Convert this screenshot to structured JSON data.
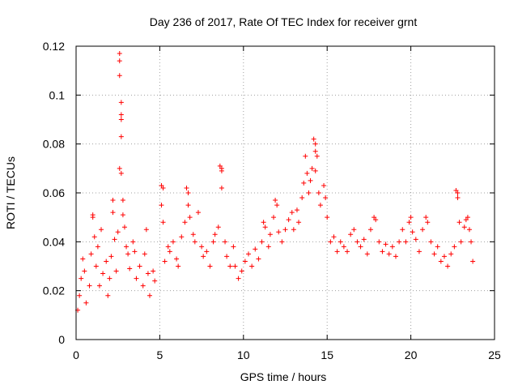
{
  "chart_data": {
    "type": "scatter",
    "title": "Day 236 of 2017, Rate Of TEC Index for receiver grnt",
    "xlabel": "GPS time / hours",
    "ylabel": "ROTI / TECUs",
    "xlim": [
      0,
      25
    ],
    "ylim": [
      0,
      0.12
    ],
    "xticks": [
      0,
      5,
      10,
      15,
      20,
      25
    ],
    "yticks": [
      0,
      0.02,
      0.04,
      0.06,
      0.08,
      0.1,
      0.12
    ],
    "xtick_labels": [
      "0",
      "5",
      "10",
      "15",
      "20",
      "25"
    ],
    "ytick_labels": [
      "0",
      "0.02",
      "0.04",
      "0.06",
      "0.08",
      "0.1",
      "0.12"
    ],
    "grid": true,
    "marker": "+",
    "color": "#ff0000",
    "series": [
      {
        "name": "ROTI",
        "points": [
          [
            0.1,
            0.012
          ],
          [
            0.2,
            0.018
          ],
          [
            0.3,
            0.025
          ],
          [
            0.4,
            0.033
          ],
          [
            0.5,
            0.028
          ],
          [
            0.6,
            0.015
          ],
          [
            0.8,
            0.022
          ],
          [
            0.9,
            0.035
          ],
          [
            1.0,
            0.051
          ],
          [
            1.0,
            0.05
          ],
          [
            1.1,
            0.042
          ],
          [
            1.2,
            0.03
          ],
          [
            1.3,
            0.038
          ],
          [
            1.4,
            0.022
          ],
          [
            1.5,
            0.045
          ],
          [
            1.6,
            0.027
          ],
          [
            1.8,
            0.032
          ],
          [
            1.9,
            0.018
          ],
          [
            2.0,
            0.025
          ],
          [
            2.1,
            0.034
          ],
          [
            2.2,
            0.052
          ],
          [
            2.2,
            0.057
          ],
          [
            2.3,
            0.041
          ],
          [
            2.4,
            0.028
          ],
          [
            2.5,
            0.044
          ],
          [
            2.6,
            0.117
          ],
          [
            2.6,
            0.114
          ],
          [
            2.6,
            0.108
          ],
          [
            2.7,
            0.097
          ],
          [
            2.7,
            0.092
          ],
          [
            2.7,
            0.09
          ],
          [
            2.7,
            0.083
          ],
          [
            2.6,
            0.07
          ],
          [
            2.7,
            0.068
          ],
          [
            2.8,
            0.057
          ],
          [
            2.8,
            0.051
          ],
          [
            2.9,
            0.046
          ],
          [
            3.0,
            0.038
          ],
          [
            3.1,
            0.035
          ],
          [
            3.2,
            0.029
          ],
          [
            3.4,
            0.04
          ],
          [
            3.5,
            0.036
          ],
          [
            3.6,
            0.025
          ],
          [
            3.8,
            0.03
          ],
          [
            4.0,
            0.022
          ],
          [
            4.1,
            0.035
          ],
          [
            4.2,
            0.045
          ],
          [
            4.3,
            0.027
          ],
          [
            4.4,
            0.018
          ],
          [
            4.6,
            0.028
          ],
          [
            4.7,
            0.024
          ],
          [
            5.1,
            0.063
          ],
          [
            5.2,
            0.062
          ],
          [
            5.1,
            0.055
          ],
          [
            5.2,
            0.048
          ],
          [
            5.3,
            0.032
          ],
          [
            5.5,
            0.038
          ],
          [
            5.6,
            0.036
          ],
          [
            5.8,
            0.04
          ],
          [
            6.0,
            0.033
          ],
          [
            6.1,
            0.03
          ],
          [
            6.3,
            0.042
          ],
          [
            6.5,
            0.048
          ],
          [
            6.6,
            0.062
          ],
          [
            6.7,
            0.06
          ],
          [
            6.7,
            0.055
          ],
          [
            6.8,
            0.05
          ],
          [
            7.0,
            0.043
          ],
          [
            7.1,
            0.04
          ],
          [
            7.3,
            0.052
          ],
          [
            7.5,
            0.038
          ],
          [
            7.6,
            0.034
          ],
          [
            7.8,
            0.036
          ],
          [
            8.0,
            0.03
          ],
          [
            8.2,
            0.04
          ],
          [
            8.3,
            0.043
          ],
          [
            8.5,
            0.046
          ],
          [
            8.6,
            0.071
          ],
          [
            8.7,
            0.07
          ],
          [
            8.7,
            0.069
          ],
          [
            8.7,
            0.062
          ],
          [
            8.9,
            0.04
          ],
          [
            9.0,
            0.034
          ],
          [
            9.2,
            0.03
          ],
          [
            9.4,
            0.038
          ],
          [
            9.5,
            0.03
          ],
          [
            9.7,
            0.025
          ],
          [
            9.9,
            0.028
          ],
          [
            10.1,
            0.032
          ],
          [
            10.3,
            0.035
          ],
          [
            10.5,
            0.03
          ],
          [
            10.7,
            0.037
          ],
          [
            10.9,
            0.033
          ],
          [
            11.1,
            0.04
          ],
          [
            11.2,
            0.048
          ],
          [
            11.3,
            0.046
          ],
          [
            11.5,
            0.038
          ],
          [
            11.6,
            0.043
          ],
          [
            11.8,
            0.05
          ],
          [
            11.9,
            0.057
          ],
          [
            12.0,
            0.055
          ],
          [
            12.1,
            0.044
          ],
          [
            12.3,
            0.04
          ],
          [
            12.5,
            0.045
          ],
          [
            12.7,
            0.049
          ],
          [
            12.9,
            0.052
          ],
          [
            13.0,
            0.045
          ],
          [
            13.2,
            0.053
          ],
          [
            13.3,
            0.048
          ],
          [
            13.5,
            0.058
          ],
          [
            13.6,
            0.064
          ],
          [
            13.7,
            0.075
          ],
          [
            13.8,
            0.068
          ],
          [
            13.9,
            0.06
          ],
          [
            14.0,
            0.065
          ],
          [
            14.1,
            0.07
          ],
          [
            14.2,
            0.082
          ],
          [
            14.3,
            0.08
          ],
          [
            14.3,
            0.077
          ],
          [
            14.4,
            0.075
          ],
          [
            14.3,
            0.069
          ],
          [
            14.5,
            0.06
          ],
          [
            14.6,
            0.055
          ],
          [
            14.8,
            0.063
          ],
          [
            14.9,
            0.058
          ],
          [
            15.0,
            0.05
          ],
          [
            15.2,
            0.04
          ],
          [
            15.4,
            0.042
          ],
          [
            15.6,
            0.036
          ],
          [
            15.8,
            0.04
          ],
          [
            16.0,
            0.038
          ],
          [
            16.2,
            0.036
          ],
          [
            16.4,
            0.043
          ],
          [
            16.6,
            0.045
          ],
          [
            16.8,
            0.04
          ],
          [
            17.0,
            0.038
          ],
          [
            17.2,
            0.041
          ],
          [
            17.4,
            0.035
          ],
          [
            17.6,
            0.045
          ],
          [
            17.8,
            0.05
          ],
          [
            17.9,
            0.049
          ],
          [
            18.1,
            0.04
          ],
          [
            18.3,
            0.036
          ],
          [
            18.5,
            0.039
          ],
          [
            18.7,
            0.035
          ],
          [
            18.9,
            0.038
          ],
          [
            19.1,
            0.034
          ],
          [
            19.3,
            0.04
          ],
          [
            19.5,
            0.045
          ],
          [
            19.7,
            0.04
          ],
          [
            19.9,
            0.048
          ],
          [
            20.0,
            0.05
          ],
          [
            20.1,
            0.044
          ],
          [
            20.3,
            0.041
          ],
          [
            20.5,
            0.036
          ],
          [
            20.7,
            0.045
          ],
          [
            20.9,
            0.05
          ],
          [
            21.0,
            0.048
          ],
          [
            21.2,
            0.04
          ],
          [
            21.4,
            0.035
          ],
          [
            21.6,
            0.038
          ],
          [
            21.8,
            0.032
          ],
          [
            22.0,
            0.034
          ],
          [
            22.2,
            0.03
          ],
          [
            22.4,
            0.035
          ],
          [
            22.6,
            0.038
          ],
          [
            22.7,
            0.061
          ],
          [
            22.8,
            0.06
          ],
          [
            22.8,
            0.058
          ],
          [
            22.9,
            0.048
          ],
          [
            23.0,
            0.04
          ],
          [
            23.2,
            0.046
          ],
          [
            23.3,
            0.049
          ],
          [
            23.4,
            0.05
          ],
          [
            23.5,
            0.045
          ],
          [
            23.6,
            0.04
          ],
          [
            23.7,
            0.032
          ]
        ]
      }
    ]
  }
}
